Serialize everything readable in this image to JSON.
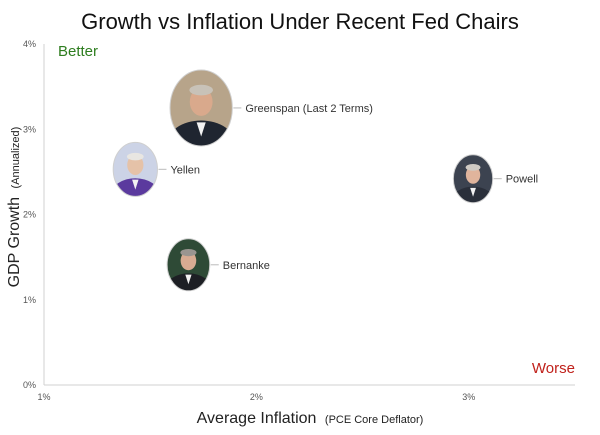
{
  "chart_data": {
    "type": "scatter",
    "title": "Growth vs Inflation Under Recent Fed Chairs",
    "xlabel_main": "Average Inflation",
    "xlabel_sub": "(PCE Core Deflator)",
    "ylabel_main": "GDP Growth",
    "ylabel_sub": "(Annualized)",
    "xlim": [
      1.0,
      3.5
    ],
    "ylim": [
      0.0,
      4.0
    ],
    "x_ticks": [
      {
        "value": 1.0,
        "label": "1%"
      },
      {
        "value": 2.0,
        "label": "2%"
      },
      {
        "value": 3.0,
        "label": "3%"
      }
    ],
    "y_ticks": [
      {
        "value": 0.0,
        "label": "0%"
      },
      {
        "value": 1.0,
        "label": "1%"
      },
      {
        "value": 2.0,
        "label": "2%"
      },
      {
        "value": 3.0,
        "label": "3%"
      },
      {
        "value": 4.0,
        "label": "4%"
      }
    ],
    "grid": false,
    "points": [
      {
        "name": "Greenspan (Last 2 Terms)",
        "x": 1.74,
        "y": 3.25,
        "colors": {
          "bg": "#b7a48a",
          "suit": "#1f2530",
          "skin": "#d9a98c",
          "hair": "#c8c2b8"
        }
      },
      {
        "name": "Yellen",
        "x": 1.43,
        "y": 2.53,
        "colors": {
          "bg": "#ccd3e6",
          "suit": "#5b3a9e",
          "skin": "#e5c2a8",
          "hair": "#e8e6e2"
        }
      },
      {
        "name": "Powell",
        "x": 3.02,
        "y": 2.42,
        "colors": {
          "bg": "#3c4350",
          "suit": "#2a2f3a",
          "skin": "#e0b49c",
          "hair": "#cfcac4"
        }
      },
      {
        "name": "Bernanke",
        "x": 1.68,
        "y": 1.41,
        "colors": {
          "bg": "#2e4a36",
          "suit": "#1d1f24",
          "skin": "#d8ab92",
          "hair": "#9a9590"
        }
      }
    ],
    "corner_labels": {
      "better": "Better",
      "worse": "Worse"
    }
  }
}
